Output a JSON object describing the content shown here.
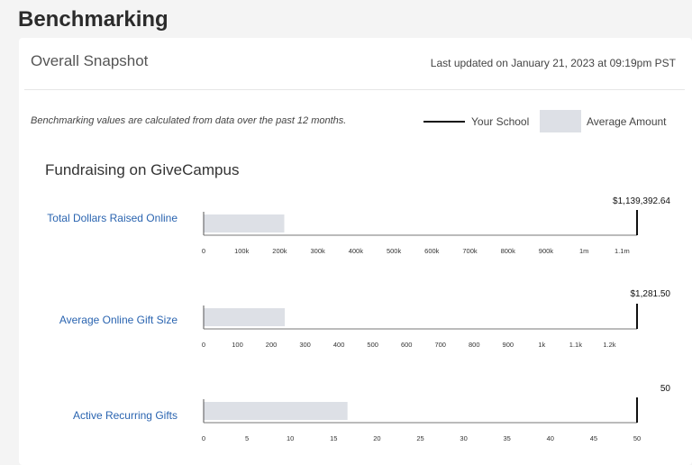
{
  "header": {
    "title": "Benchmarking"
  },
  "snapshot": {
    "title": "Overall Snapshot",
    "last_updated": "Last updated on January 21, 2023 at 09:19pm PST",
    "note": "Benchmarking values are calculated from data over the past 12 months."
  },
  "legend": {
    "your_school": "Your School",
    "average": "Average Amount"
  },
  "section": {
    "title": "Fundraising on GiveCampus"
  },
  "colors": {
    "average_bar": "#dde0e6",
    "school_line": "#111111",
    "label_blue": "#2a64b0"
  },
  "chart_data": [
    {
      "type": "bar",
      "metric": "Total Dollars Raised Online",
      "your_school_label": "$1,139,392.64",
      "your_school_value": 1139392.64,
      "average_value": 212000,
      "ticks": [
        0,
        100000,
        200000,
        300000,
        400000,
        500000,
        600000,
        700000,
        800000,
        900000,
        1000000,
        1100000
      ],
      "tick_labels": [
        "0",
        "100k",
        "200k",
        "300k",
        "400k",
        "500k",
        "600k",
        "700k",
        "800k",
        "900k",
        "1m",
        "1.1m"
      ],
      "xlim": [
        0,
        1139392.64
      ]
    },
    {
      "type": "bar",
      "metric": "Average Online Gift Size",
      "your_school_label": "$1,281.50",
      "your_school_value": 1281.5,
      "average_value": 240,
      "ticks": [
        0,
        100,
        200,
        300,
        400,
        500,
        600,
        700,
        800,
        900,
        1000,
        1100,
        1200
      ],
      "tick_labels": [
        "0",
        "100",
        "200",
        "300",
        "400",
        "500",
        "600",
        "700",
        "800",
        "900",
        "1k",
        "1.1k",
        "1.2k"
      ],
      "xlim": [
        0,
        1281.5
      ]
    },
    {
      "type": "bar",
      "metric": "Active Recurring Gifts",
      "your_school_label": "50",
      "your_school_value": 50,
      "average_value": 16.6,
      "ticks": [
        0,
        5,
        10,
        15,
        20,
        25,
        30,
        35,
        40,
        45,
        50
      ],
      "tick_labels": [
        "0",
        "5",
        "10",
        "15",
        "20",
        "25",
        "30",
        "35",
        "40",
        "45",
        "50"
      ],
      "xlim": [
        0,
        50
      ]
    }
  ]
}
